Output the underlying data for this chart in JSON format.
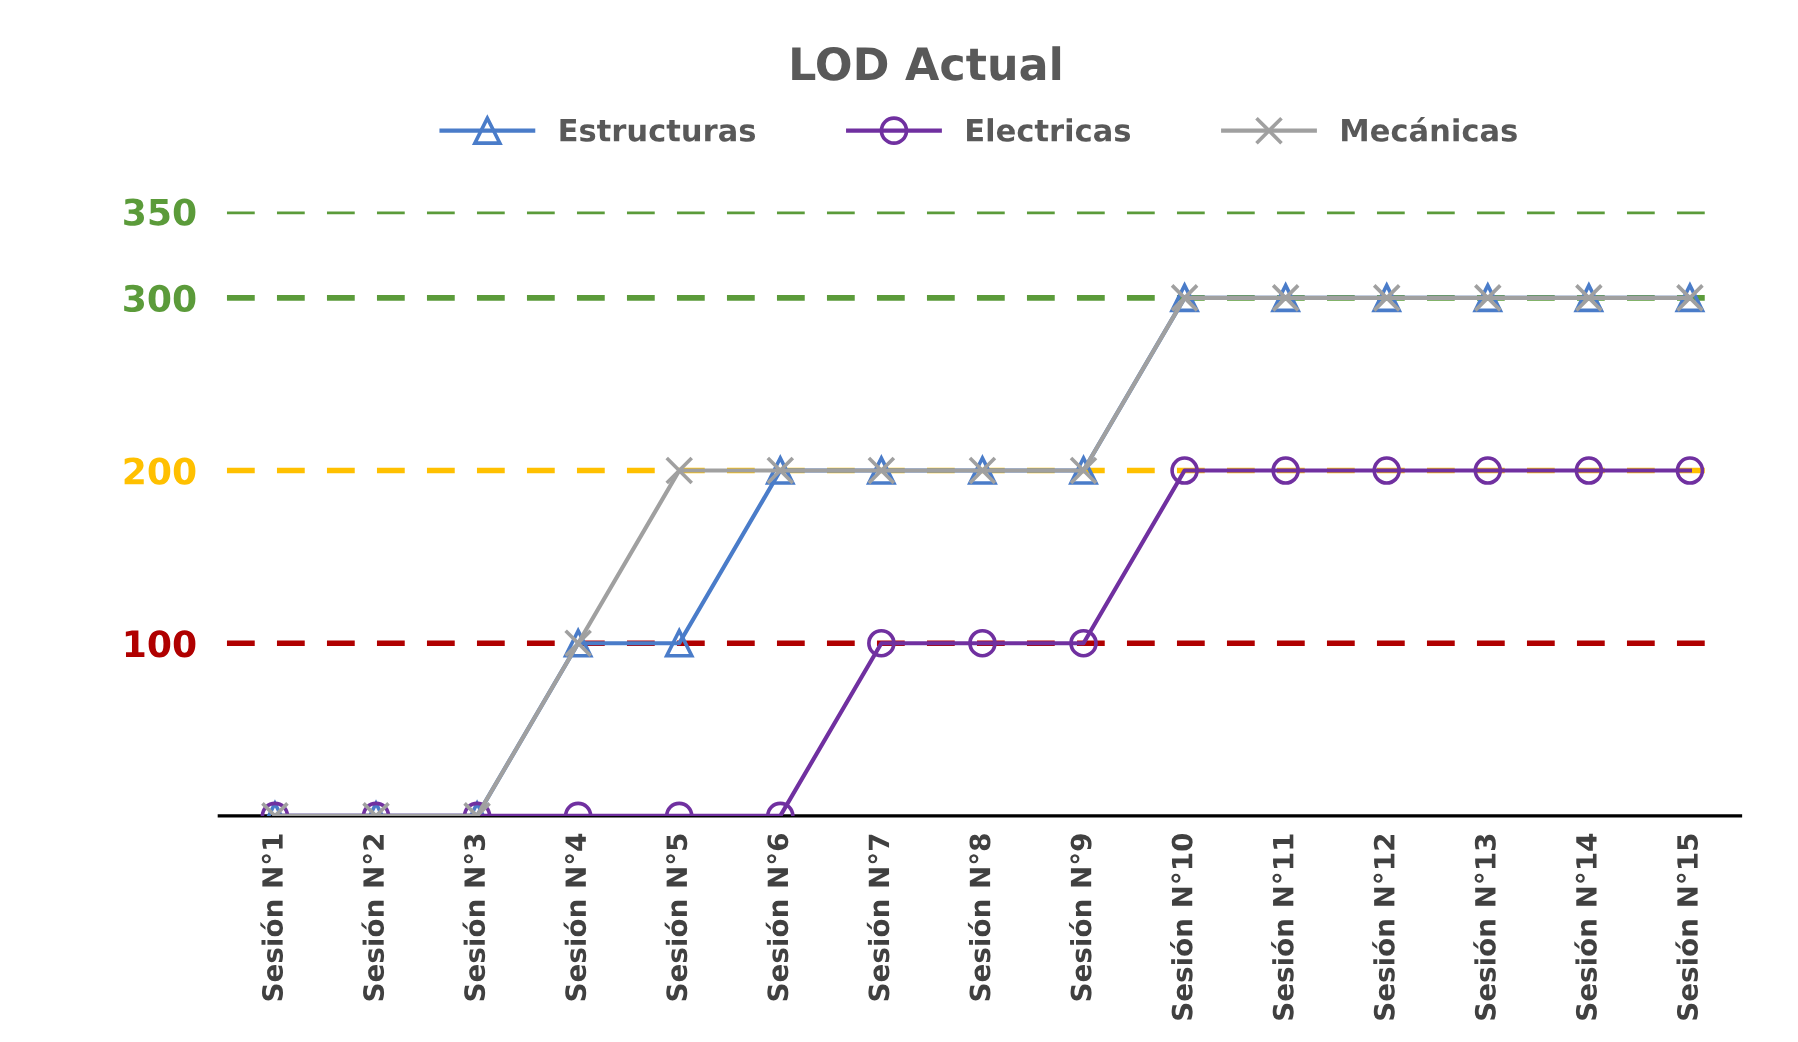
{
  "chart_data": {
    "type": "line",
    "title": "LOD Actual",
    "categories": [
      "Sesión N°1",
      "Sesión N°2",
      "Sesión N°3",
      "Sesión N°4",
      "Sesión N°5",
      "Sesión N°6",
      "Sesión N°7",
      "Sesión N°8",
      "Sesión N°9",
      "Sesión N°10",
      "Sesión N°11",
      "Sesión N°12",
      "Sesión N°13",
      "Sesión N°14",
      "Sesión N°15"
    ],
    "series": [
      {
        "name": "Estructuras",
        "color": "#4a7cc9",
        "marker": "triangle",
        "values": [
          0,
          0,
          0,
          100,
          100,
          200,
          200,
          200,
          200,
          300,
          300,
          300,
          300,
          300,
          300
        ]
      },
      {
        "name": "Electricas",
        "color": "#7030a0",
        "marker": "circle",
        "values": [
          0,
          0,
          0,
          0,
          0,
          0,
          100,
          100,
          100,
          200,
          200,
          200,
          200,
          200,
          200
        ]
      },
      {
        "name": "Mecánicas",
        "color": "#a0a0a0",
        "marker": "cross",
        "values": [
          0,
          0,
          0,
          100,
          200,
          200,
          200,
          200,
          200,
          300,
          300,
          300,
          300,
          300,
          300
        ]
      }
    ],
    "ylim": [
      0,
      350
    ],
    "yticks": [
      100,
      200,
      300,
      350
    ],
    "legend": "top",
    "grid": false,
    "ref_lines": [
      {
        "axis": "y",
        "value": 350,
        "color": "#5b9b3a",
        "line_style": "dashed"
      },
      {
        "axis": "y",
        "value": 300,
        "color": "#5b9b3a",
        "line_style": "dashed"
      },
      {
        "axis": "y",
        "value": 200,
        "color": "#ffc000",
        "line_style": "dashed"
      },
      {
        "axis": "y",
        "value": 100,
        "color": "#b00000",
        "line_style": "dashed"
      }
    ]
  }
}
